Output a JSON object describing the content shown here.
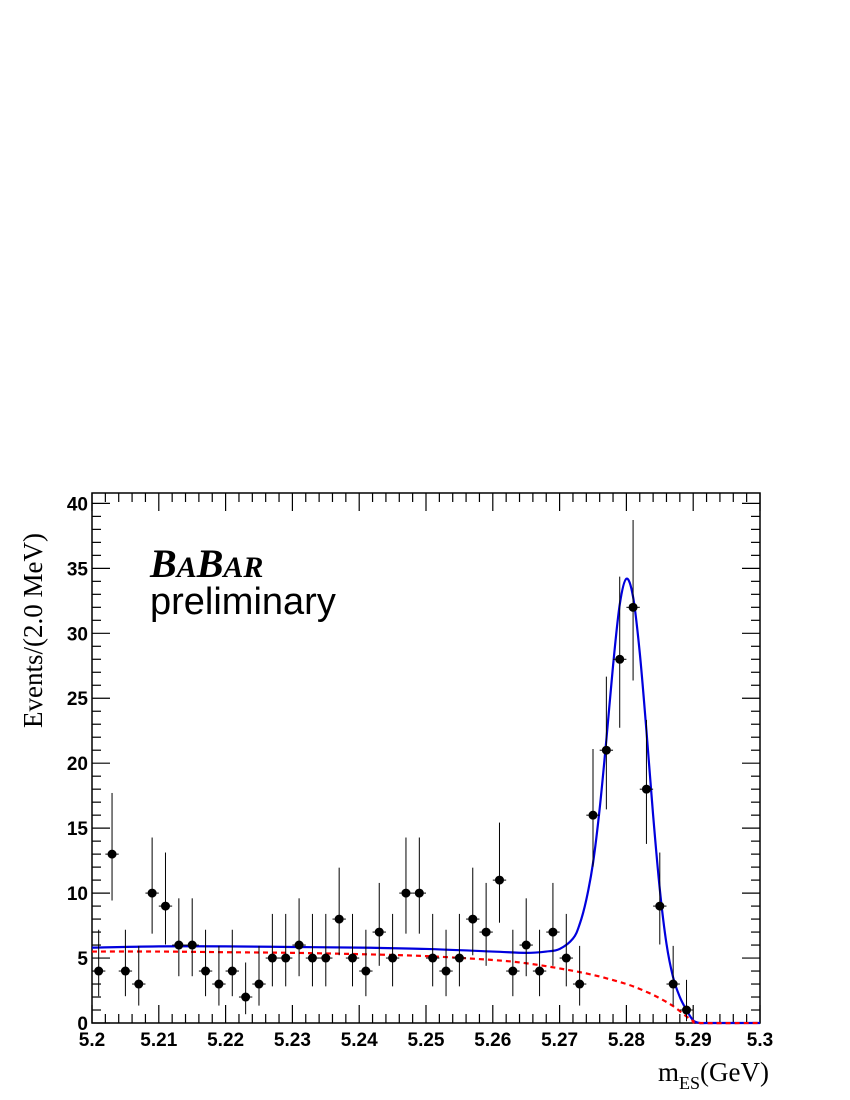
{
  "chart_data": {
    "type": "scatter",
    "experiment_logo": "BaBar",
    "annotation": "preliminary",
    "ylabel": "Events/(2.0 MeV)",
    "xlabel_main": "m",
    "xlabel_sub": "ES",
    "xlabel_unit": "(GeV)",
    "xlim": [
      5.2,
      5.3
    ],
    "ylim": [
      0,
      40.8
    ],
    "x_ticks": [
      "5.2",
      "5.21",
      "5.22",
      "5.23",
      "5.24",
      "5.25",
      "5.26",
      "5.27",
      "5.28",
      "5.29",
      "5.3"
    ],
    "y_ticks": [
      "0",
      "5",
      "10",
      "15",
      "20",
      "25",
      "30",
      "35",
      "40"
    ],
    "bin_half_width": 0.001,
    "series": [
      {
        "type": "errorbar",
        "color": "#000000",
        "x": [
          5.201,
          5.203,
          5.205,
          5.207,
          5.209,
          5.211,
          5.213,
          5.215,
          5.217,
          5.219,
          5.221,
          5.223,
          5.225,
          5.227,
          5.229,
          5.231,
          5.233,
          5.235,
          5.237,
          5.239,
          5.241,
          5.243,
          5.245,
          5.247,
          5.249,
          5.251,
          5.253,
          5.255,
          5.257,
          5.259,
          5.261,
          5.263,
          5.265,
          5.267,
          5.269,
          5.271,
          5.273,
          5.275,
          5.277,
          5.279,
          5.281,
          5.283,
          5.285,
          5.287,
          5.289
        ],
        "y": [
          4,
          13,
          4,
          3,
          10,
          9,
          6,
          6,
          4,
          3,
          4,
          2,
          3,
          5,
          5,
          6,
          5,
          5,
          8,
          5,
          4,
          7,
          5,
          10,
          10,
          5,
          4,
          5,
          8,
          7,
          11,
          4,
          6,
          4,
          7,
          5,
          3,
          16,
          21,
          28,
          32,
          18,
          9,
          3,
          1
        ]
      },
      {
        "type": "line",
        "style": "solid",
        "color": "#0000dd",
        "x": [
          5.2,
          5.21,
          5.22,
          5.23,
          5.24,
          5.25,
          5.26,
          5.265,
          5.268,
          5.27,
          5.272,
          5.273,
          5.274,
          5.275,
          5.276,
          5.277,
          5.278,
          5.279,
          5.28,
          5.281,
          5.282,
          5.283,
          5.284,
          5.285,
          5.286,
          5.287,
          5.288,
          5.289,
          5.29,
          5.291,
          5.292,
          5.3
        ],
        "y": [
          5.8,
          5.9,
          5.9,
          5.85,
          5.8,
          5.7,
          5.5,
          5.4,
          5.5,
          5.7,
          6.5,
          7.6,
          9.5,
          12.3,
          16.5,
          21.8,
          27.5,
          32.2,
          34.2,
          32.8,
          28.5,
          22.5,
          16.0,
          10.3,
          6.1,
          3.5,
          2.0,
          1.0,
          0.2,
          0,
          0,
          0
        ]
      },
      {
        "type": "line",
        "style": "dashed",
        "color": "#ff0000",
        "x": [
          5.2,
          5.21,
          5.22,
          5.23,
          5.24,
          5.25,
          5.26,
          5.265,
          5.27,
          5.275,
          5.28,
          5.283,
          5.285,
          5.287,
          5.289,
          5.29,
          5.291,
          5.3
        ],
        "y": [
          5.5,
          5.5,
          5.45,
          5.4,
          5.3,
          5.15,
          4.85,
          4.6,
          4.2,
          3.7,
          3.0,
          2.4,
          1.9,
          1.3,
          0.5,
          0.15,
          0,
          0
        ]
      }
    ]
  }
}
